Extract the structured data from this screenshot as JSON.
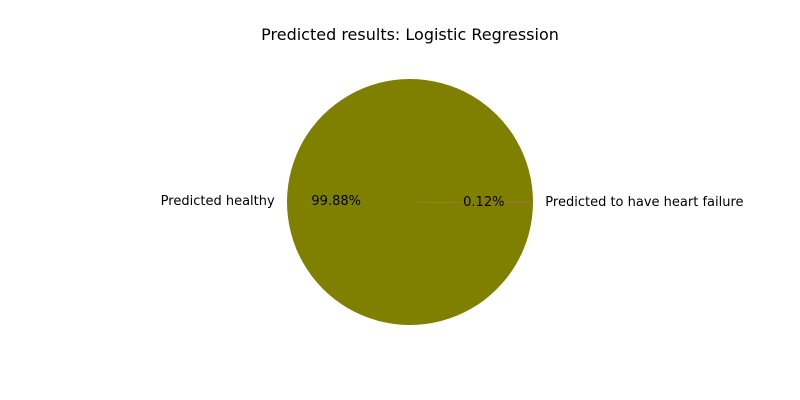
{
  "chart_data": {
    "type": "pie",
    "title": "Predicted results: Logistic Regression",
    "slices": [
      {
        "label": "Predicted healthy",
        "value": 99.88,
        "pct_label": "99.88%",
        "color": "#808000"
      },
      {
        "label": "Predicted to have heart failure",
        "value": 0.12,
        "pct_label": "0.12%",
        "color": "#a0522d"
      }
    ],
    "legend": "none"
  }
}
